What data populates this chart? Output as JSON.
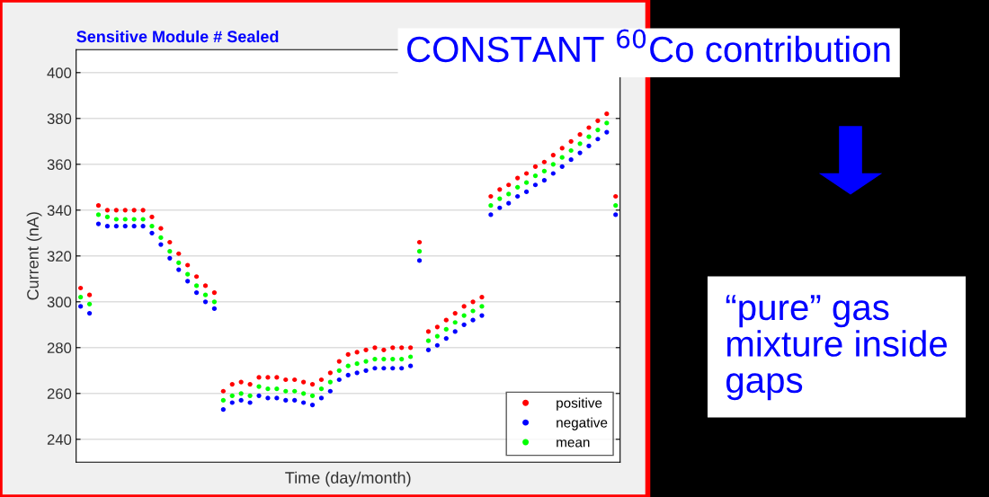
{
  "chart_data": {
    "type": "scatter",
    "title": "Sensitive Module # Sealed",
    "xlabel": "Time (day/month)",
    "ylabel": "Current (nA)",
    "categories": [
      null,
      null,
      null,
      null,
      null,
      null,
      null,
      null,
      null,
      null,
      null,
      null,
      null,
      null,
      null,
      null,
      null,
      null,
      null,
      null,
      null,
      null,
      null,
      null,
      null,
      null,
      null,
      null,
      null,
      null,
      null,
      null,
      null,
      null,
      null,
      null,
      null,
      null,
      null,
      null,
      null,
      null,
      null,
      null,
      null,
      null,
      null,
      null,
      null,
      null,
      null,
      null,
      null,
      null,
      null,
      null,
      null,
      null,
      null,
      null,
      null
    ],
    "series": [
      {
        "name": "positive",
        "color": "#ff0000",
        "values": [
          306,
          303,
          342,
          340,
          340,
          340,
          340,
          340,
          337,
          332,
          326,
          321,
          316,
          311,
          307,
          304,
          261,
          264,
          265,
          264,
          267,
          267,
          267,
          266,
          266,
          265,
          264,
          266,
          269,
          274,
          277,
          278,
          279,
          280,
          279,
          280,
          280,
          280,
          326,
          287,
          289,
          292,
          295,
          298,
          300,
          302,
          346,
          349,
          351,
          354,
          356,
          359,
          361,
          364,
          367,
          370,
          373,
          376,
          379,
          382,
          346
        ]
      },
      {
        "name": "negative",
        "color": "#0000ff",
        "values": [
          298,
          295,
          334,
          333,
          333,
          333,
          333,
          333,
          330,
          325,
          319,
          314,
          309,
          304,
          300,
          297,
          253,
          256,
          257,
          256,
          259,
          258,
          258,
          257,
          257,
          256,
          255,
          258,
          261,
          266,
          268,
          269,
          270,
          271,
          271,
          271,
          271,
          272,
          318,
          279,
          281,
          284,
          287,
          290,
          292,
          294,
          338,
          341,
          343,
          346,
          348,
          351,
          353,
          356,
          359,
          362,
          365,
          368,
          371,
          374,
          338
        ]
      },
      {
        "name": "mean",
        "color": "#00ff00",
        "values": [
          302,
          299,
          338,
          337,
          336,
          336,
          336,
          336,
          333,
          328,
          322,
          317,
          312,
          307,
          303,
          300,
          257,
          259,
          260,
          259,
          263,
          262,
          262,
          261,
          261,
          260,
          259,
          262,
          265,
          270,
          272,
          273,
          274,
          275,
          275,
          275,
          275,
          276,
          322,
          283,
          285,
          288,
          291,
          294,
          296,
          298,
          342,
          345,
          347,
          350,
          352,
          355,
          357,
          360,
          363,
          366,
          369,
          372,
          375,
          378,
          342
        ]
      }
    ],
    "ylim": [
      230,
      410
    ],
    "yticks": [
      240,
      260,
      280,
      300,
      320,
      340,
      360,
      380,
      400
    ],
    "grid": "y",
    "legend": "bottom right",
    "marker": "circle",
    "annotations": [
      "CONSTANT $^{60}$Co contribution",
      "“pure” gas mixture inside gaps"
    ]
  }
}
